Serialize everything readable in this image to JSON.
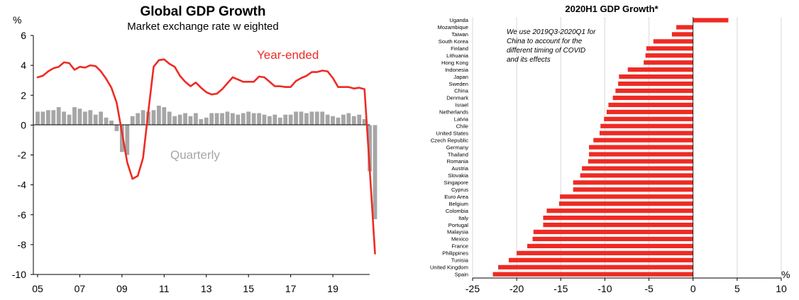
{
  "chart_data": [
    {
      "type": "bar+line",
      "title": "Global GDP Growth",
      "subtitle": "Market exchange rate w eighted",
      "ylabel": "%",
      "ylim": [
        -10,
        6
      ],
      "yticks": [
        "6",
        "4",
        "2",
        "0",
        "-2",
        "-4",
        "-6",
        "-8",
        "-10"
      ],
      "xticks": [
        "05",
        "07",
        "09",
        "11",
        "13",
        "15",
        "17",
        "19"
      ],
      "grid": false,
      "annotations": {
        "line": "Year-ended",
        "bars": "Quarterly"
      },
      "colors": {
        "line": "#ee2b24",
        "bars": "#a6a6a6"
      },
      "x_start_year": 2005,
      "series": [
        {
          "name": "Year-ended",
          "kind": "line",
          "values": [
            3.2,
            3.3,
            3.6,
            3.8,
            3.9,
            4.2,
            4.15,
            3.7,
            3.9,
            3.85,
            4.0,
            3.95,
            3.6,
            3.1,
            2.5,
            1.5,
            -0.5,
            -2.5,
            -3.6,
            -3.4,
            -2.2,
            0.9,
            3.9,
            4.35,
            4.4,
            4.1,
            3.9,
            3.3,
            2.9,
            2.6,
            2.85,
            2.5,
            2.2,
            2.05,
            2.1,
            2.4,
            2.8,
            3.2,
            3.05,
            2.9,
            2.9,
            2.9,
            3.25,
            3.2,
            2.9,
            2.6,
            2.6,
            2.55,
            2.55,
            2.95,
            3.15,
            3.3,
            3.55,
            3.55,
            3.65,
            3.6,
            3.15,
            2.55,
            2.55,
            2.55,
            2.45,
            2.5,
            2.4,
            -3.0,
            -8.6
          ]
        },
        {
          "name": "Quarterly",
          "kind": "bar",
          "values": [
            0.9,
            0.9,
            1.0,
            1.0,
            1.2,
            0.9,
            0.7,
            1.2,
            1.1,
            0.9,
            1.0,
            0.7,
            0.9,
            0.5,
            0.3,
            -0.4,
            -1.8,
            -2.0,
            0.6,
            0.8,
            1.0,
            0.9,
            1.0,
            1.3,
            1.2,
            0.9,
            0.6,
            0.7,
            0.8,
            0.6,
            0.8,
            0.4,
            0.5,
            0.8,
            0.8,
            0.8,
            0.9,
            0.8,
            0.7,
            0.8,
            0.9,
            0.8,
            0.8,
            0.7,
            0.6,
            0.7,
            0.5,
            0.7,
            0.7,
            0.9,
            0.9,
            0.8,
            0.9,
            0.9,
            0.9,
            0.7,
            0.6,
            0.5,
            0.7,
            0.8,
            0.6,
            0.7,
            0.4,
            -3.1,
            -6.3
          ]
        }
      ]
    },
    {
      "type": "bar",
      "orientation": "horizontal",
      "title": "2020H1 GDP Growth*",
      "xlabel": "%",
      "xlim": [
        -25,
        10
      ],
      "xticks": [
        "-25",
        "-20",
        "-15",
        "-10",
        "-5",
        "0",
        "5",
        "10"
      ],
      "grid": true,
      "note": [
        "We use 2019Q3-2020Q1  for",
        "China  to account for the",
        "different timing  of COVID",
        "and its effects"
      ],
      "colors": {
        "bars": "#ee2b24",
        "grid": "#d9d9d9"
      },
      "categories": [
        "Uganda",
        "Mozambique",
        "Taiwan",
        "South Korea",
        "Finland",
        "Lithuania",
        "Hong Kong",
        "Indonesia",
        "Japan",
        "Sweden",
        "China",
        "Denmark",
        "Israel",
        "Netherlands",
        "Latvia",
        "Chile",
        "United States",
        "Czech Republic",
        "Germany",
        "Thailand",
        "Romania",
        "Austria",
        "Slovakia",
        "Singapore",
        "Cyprus",
        "Euro Area",
        "Belgium",
        "Colombia",
        "Italy",
        "Portugal",
        "Malaysia",
        "Mexico",
        "France",
        "Philippines",
        "Tunisia",
        "United Kingdom",
        "Spain"
      ],
      "values": [
        4.0,
        -1.9,
        -2.4,
        -4.5,
        -5.3,
        -5.4,
        -5.6,
        -7.4,
        -8.4,
        -8.5,
        -8.8,
        -9.1,
        -9.6,
        -9.8,
        -10.1,
        -10.5,
        -10.6,
        -11.3,
        -11.8,
        -11.8,
        -11.9,
        -12.6,
        -12.8,
        -13.6,
        -13.6,
        -15.1,
        -15.2,
        -16.6,
        -17.0,
        -17.0,
        -18.1,
        -18.2,
        -18.8,
        -20.0,
        -20.9,
        -22.1,
        -22.7
      ]
    }
  ]
}
